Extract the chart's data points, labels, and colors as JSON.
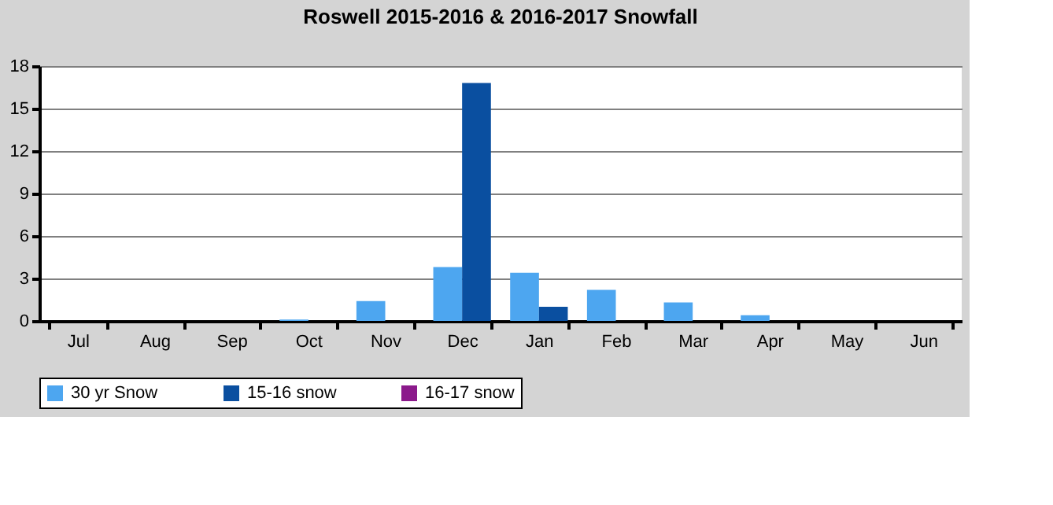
{
  "chart_data": {
    "type": "bar",
    "title": "Roswell 2015-2016 & 2016-2017 Snowfall",
    "categories": [
      "Jul",
      "Aug",
      "Sep",
      "Oct",
      "Nov",
      "Dec",
      "Jan",
      "Feb",
      "Mar",
      "Apr",
      "May",
      "Jun"
    ],
    "series": [
      {
        "name": "30 yr Snow",
        "color": "#4da6f0",
        "values": [
          0,
          0,
          0,
          0.1,
          1.4,
          3.8,
          3.4,
          2.2,
          1.3,
          0.4,
          0,
          0
        ]
      },
      {
        "name": "15-16 snow",
        "color": "#0a4fa0",
        "values": [
          0,
          0,
          0,
          0,
          0,
          16.8,
          1.0,
          0,
          0,
          0,
          0,
          0
        ]
      },
      {
        "name": "16-17 snow",
        "color": "#8b1a8b",
        "values": [
          null,
          null,
          null,
          null,
          null,
          null,
          null,
          null,
          null,
          null,
          null,
          null
        ]
      }
    ],
    "ylim": [
      0,
      18
    ],
    "yticks": [
      0,
      3,
      6,
      9,
      12,
      15,
      18
    ],
    "grid": "y",
    "legend": "bottom"
  }
}
